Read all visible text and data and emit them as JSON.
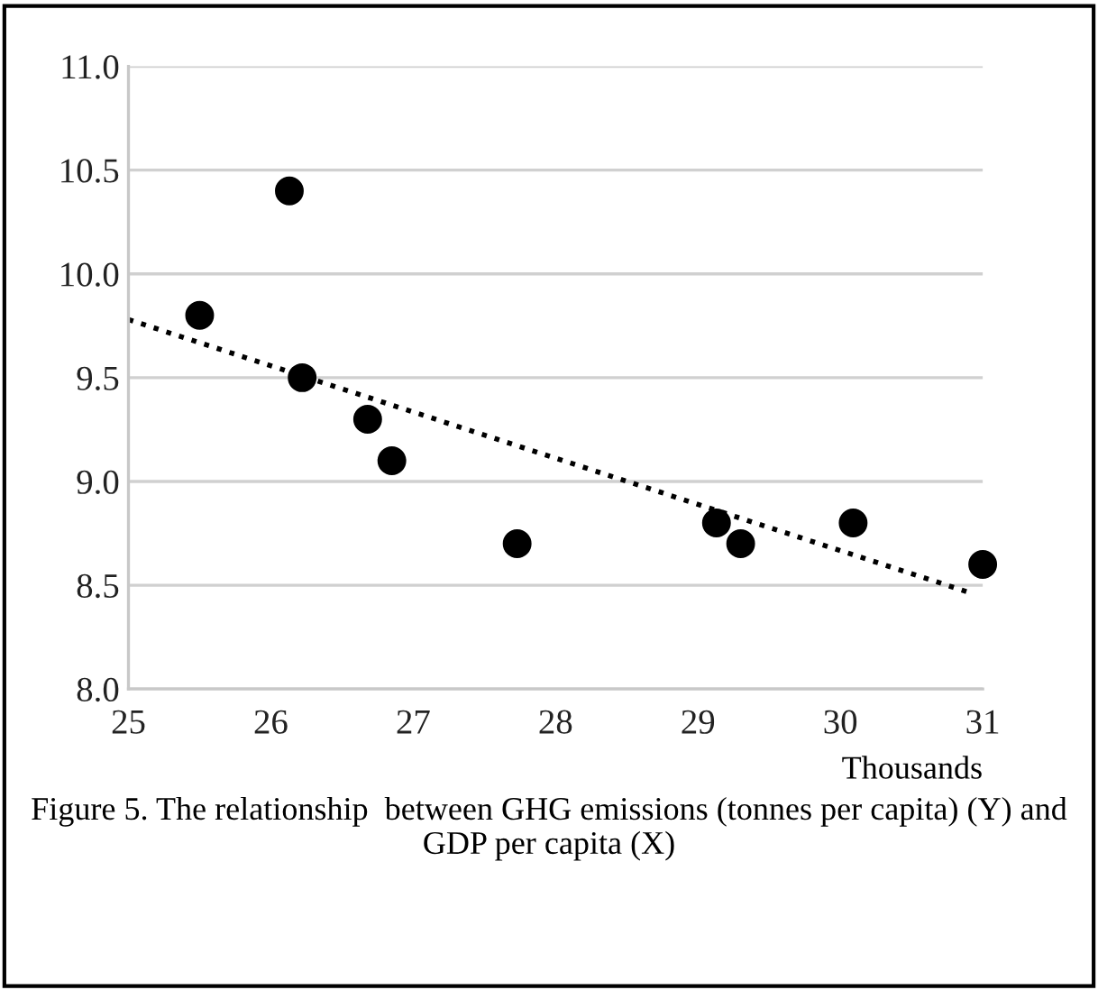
{
  "chart_data": {
    "type": "scatter",
    "xlabel": "Thousands",
    "annotations": [
      "Figure 5. The relationship  between GHG emissions (tonnes per capita) (Y) and GDP per capita (X)"
    ],
    "series": [
      {
        "color": "#000000",
        "marker": "circle",
        "x": [
          25.5,
          26.13,
          26.22,
          26.68,
          26.85,
          27.73,
          29.13,
          29.3,
          30.09,
          31.0
        ],
        "values": [
          9.8,
          10.4,
          9.5,
          9.3,
          9.1,
          8.7,
          8.8,
          8.7,
          8.8,
          8.6
        ]
      },
      {
        "type": "line",
        "color": "#000000",
        "line_style": "dotted",
        "x": [
          25,
          30.93
        ],
        "values": [
          9.78,
          8.46
        ]
      }
    ],
    "xlim": [
      25,
      31
    ],
    "xticks": [
      25,
      26,
      27,
      28,
      29,
      30,
      31
    ],
    "ylim": [
      8.0,
      11.0
    ],
    "yticks": [
      {
        "value": 8.0,
        "label": "8.0"
      },
      {
        "value": 8.5,
        "label": "8.5"
      },
      {
        "value": 9.0,
        "label": "9.0"
      },
      {
        "value": 9.5,
        "label": "9.5"
      },
      {
        "value": 10.0,
        "label": "10.0"
      },
      {
        "value": 10.5,
        "label": "10.5"
      },
      {
        "value": 11.0,
        "label": "11.0"
      }
    ],
    "grid": "y",
    "legend": false
  }
}
